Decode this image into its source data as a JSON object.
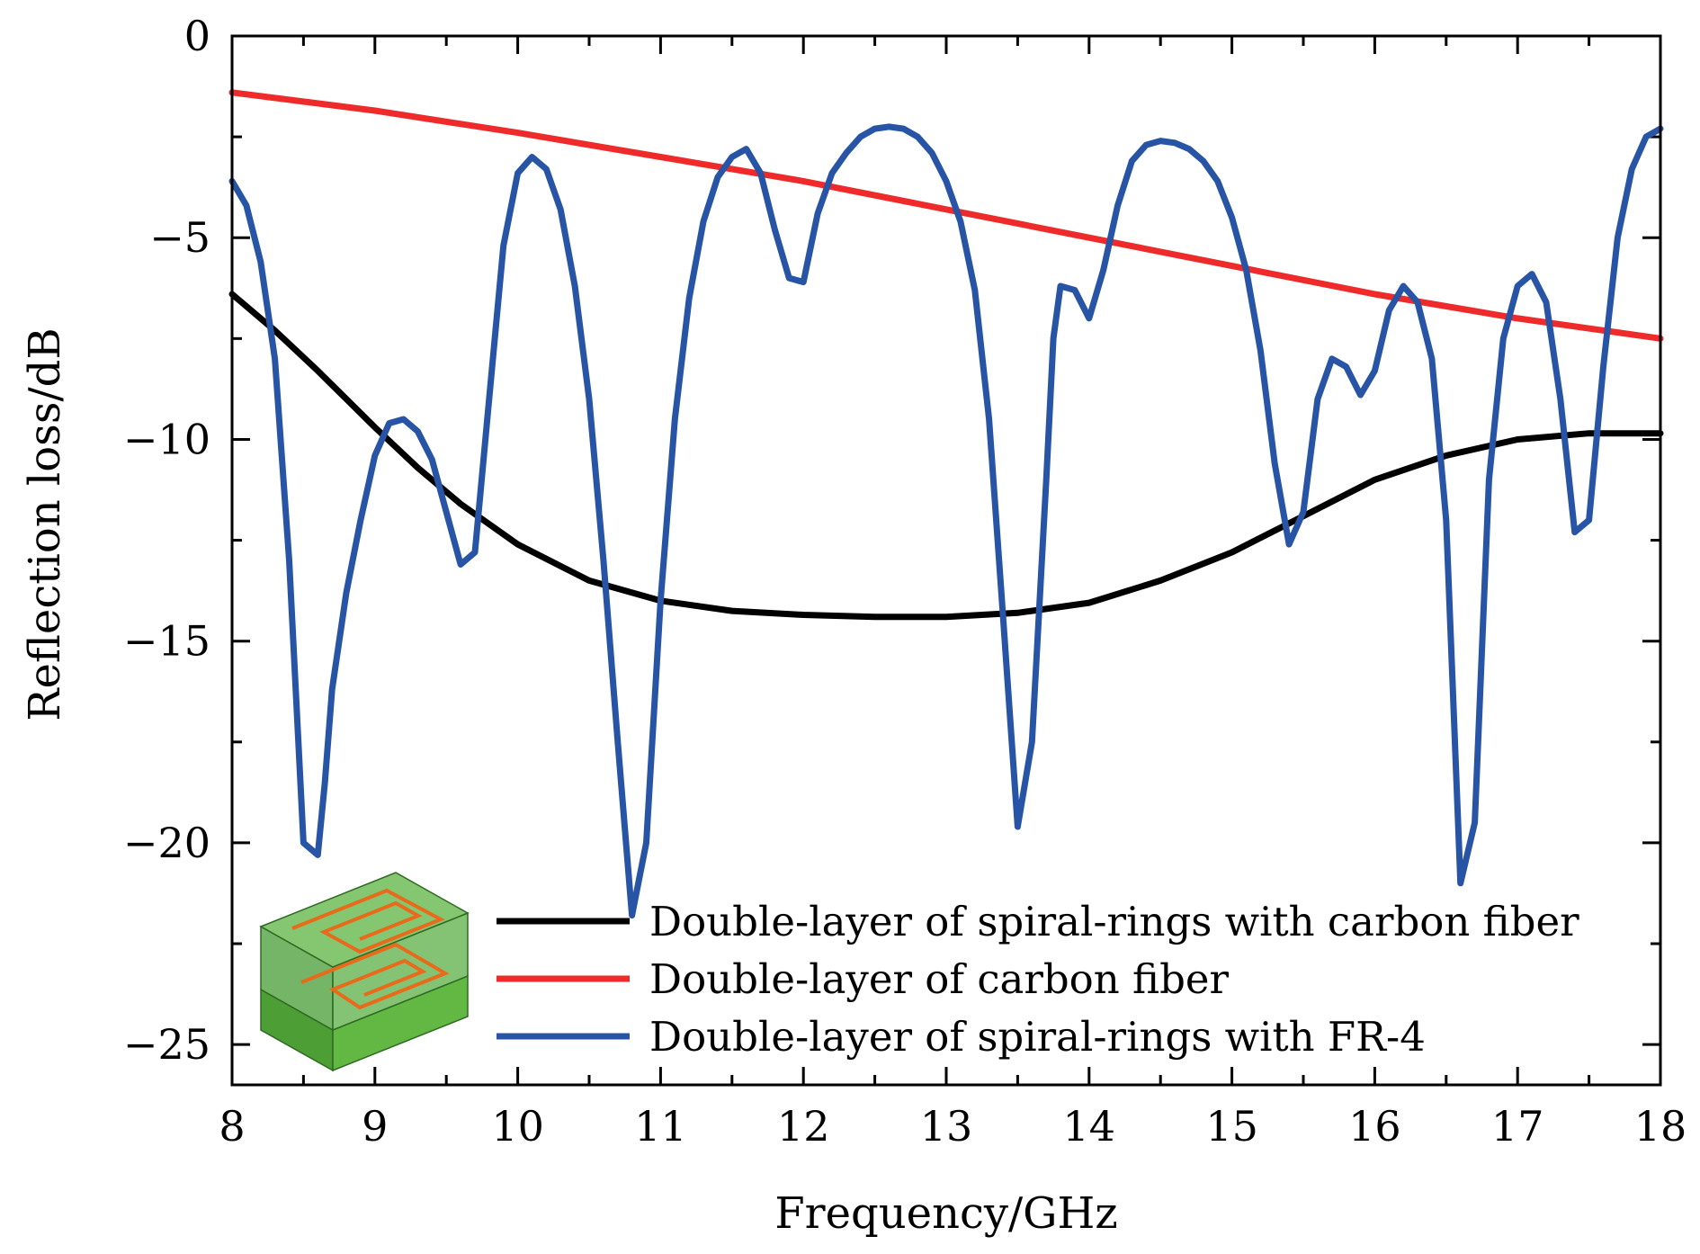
{
  "chart_data": {
    "type": "line",
    "title": "",
    "xlabel": "Frequency/GHz",
    "ylabel": "Reflection loss/dB",
    "xlim": [
      8,
      18
    ],
    "ylim": [
      -26,
      0
    ],
    "xticks": [
      8,
      9,
      10,
      11,
      12,
      13,
      14,
      15,
      16,
      17,
      18
    ],
    "yticks": [
      0,
      -5,
      -10,
      -15,
      -20,
      -25
    ],
    "xtick_labels": [
      "8",
      "9",
      "10",
      "11",
      "12",
      "13",
      "14",
      "15",
      "16",
      "17",
      "18"
    ],
    "ytick_labels": [
      "0",
      "−5",
      "−10",
      "−15",
      "−20",
      "−25"
    ],
    "grid": false,
    "legend_position": "bottom-right",
    "series": [
      {
        "name": "Double-layer of spiral-rings with carbon fiber",
        "color": "#000000",
        "x": [
          8.0,
          8.3,
          8.6,
          9.0,
          9.3,
          9.6,
          10.0,
          10.5,
          11.0,
          11.5,
          12.0,
          12.5,
          13.0,
          13.5,
          14.0,
          14.5,
          15.0,
          15.5,
          16.0,
          16.5,
          17.0,
          17.5,
          18.0
        ],
        "y": [
          -6.4,
          -7.3,
          -8.3,
          -9.7,
          -10.7,
          -11.6,
          -12.6,
          -13.5,
          -14.0,
          -14.25,
          -14.35,
          -14.4,
          -14.4,
          -14.3,
          -14.05,
          -13.5,
          -12.8,
          -11.9,
          -11.0,
          -10.4,
          -10.0,
          -9.85,
          -9.85
        ]
      },
      {
        "name": "Double-layer of carbon fiber",
        "color": "#ee2a2a",
        "x": [
          8.0,
          9.0,
          10.0,
          11.0,
          12.0,
          13.0,
          14.0,
          15.0,
          16.0,
          17.0,
          18.0
        ],
        "y": [
          -1.4,
          -1.85,
          -2.4,
          -3.0,
          -3.6,
          -4.3,
          -5.0,
          -5.7,
          -6.4,
          -7.0,
          -7.5
        ]
      },
      {
        "name": "Double-layer of spiral-rings with FR-4",
        "color": "#2754a4",
        "x": [
          8.0,
          8.1,
          8.2,
          8.3,
          8.4,
          8.5,
          8.6,
          8.65,
          8.7,
          8.8,
          8.9,
          9.0,
          9.1,
          9.2,
          9.3,
          9.4,
          9.5,
          9.6,
          9.7,
          9.8,
          9.9,
          10.0,
          10.1,
          10.2,
          10.3,
          10.4,
          10.5,
          10.6,
          10.7,
          10.8,
          10.9,
          11.0,
          11.1,
          11.2,
          11.3,
          11.4,
          11.5,
          11.6,
          11.7,
          11.8,
          11.9,
          12.0,
          12.1,
          12.2,
          12.3,
          12.4,
          12.5,
          12.6,
          12.7,
          12.8,
          12.9,
          13.0,
          13.1,
          13.2,
          13.3,
          13.4,
          13.5,
          13.6,
          13.7,
          13.75,
          13.8,
          13.9,
          14.0,
          14.1,
          14.2,
          14.3,
          14.4,
          14.5,
          14.6,
          14.7,
          14.8,
          14.9,
          15.0,
          15.1,
          15.2,
          15.3,
          15.4,
          15.5,
          15.6,
          15.7,
          15.8,
          15.9,
          16.0,
          16.1,
          16.2,
          16.3,
          16.4,
          16.5,
          16.6,
          16.7,
          16.8,
          16.9,
          17.0,
          17.1,
          17.2,
          17.3,
          17.4,
          17.5,
          17.6,
          17.7,
          17.8,
          17.9,
          18.0
        ],
        "y": [
          -3.6,
          -4.2,
          -5.6,
          -8.0,
          -13.0,
          -20.0,
          -20.3,
          -18.5,
          -16.2,
          -13.8,
          -12.0,
          -10.4,
          -9.6,
          -9.5,
          -9.8,
          -10.5,
          -11.8,
          -13.1,
          -12.8,
          -9.0,
          -5.2,
          -3.4,
          -3.0,
          -3.3,
          -4.3,
          -6.2,
          -9.0,
          -13.0,
          -17.5,
          -21.8,
          -20.0,
          -14.0,
          -9.5,
          -6.5,
          -4.6,
          -3.5,
          -3.0,
          -2.8,
          -3.4,
          -4.8,
          -6.0,
          -6.1,
          -4.4,
          -3.4,
          -2.9,
          -2.5,
          -2.3,
          -2.25,
          -2.3,
          -2.5,
          -2.9,
          -3.6,
          -4.6,
          -6.3,
          -9.5,
          -14.5,
          -19.6,
          -17.5,
          -11.0,
          -7.5,
          -6.2,
          -6.3,
          -7.0,
          -5.8,
          -4.2,
          -3.1,
          -2.7,
          -2.6,
          -2.65,
          -2.8,
          -3.1,
          -3.6,
          -4.5,
          -5.8,
          -7.8,
          -10.6,
          -12.6,
          -11.8,
          -9.0,
          -8.0,
          -8.2,
          -8.9,
          -8.3,
          -6.8,
          -6.2,
          -6.6,
          -8.0,
          -12.0,
          -21.0,
          -19.5,
          -11.0,
          -7.5,
          -6.2,
          -5.9,
          -6.6,
          -9.0,
          -12.3,
          -12.0,
          -8.2,
          -5.0,
          -3.3,
          -2.5,
          -2.3
        ]
      }
    ],
    "inset": {
      "description_icon": "spiral-ring-unit-cell-icon",
      "colors": {
        "substrate": "#6cc24a",
        "cover": "#5aa84a",
        "spiral": "#e86a1a"
      }
    }
  }
}
